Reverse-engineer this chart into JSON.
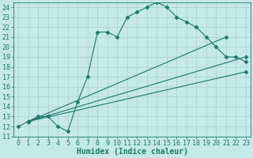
{
  "xlabel": "Humidex (Indice chaleur)",
  "bg_color": "#c5e8e8",
  "line_color": "#1a7a6a",
  "grid_color": "#aad0d0",
  "xlim": [
    -0.5,
    23.5
  ],
  "ylim": [
    11,
    24.5
  ],
  "yticks": [
    11,
    12,
    13,
    14,
    15,
    16,
    17,
    18,
    19,
    20,
    21,
    22,
    23,
    24
  ],
  "xticks": [
    0,
    1,
    2,
    3,
    4,
    5,
    6,
    7,
    8,
    9,
    10,
    11,
    12,
    13,
    14,
    15,
    16,
    17,
    18,
    19,
    20,
    21,
    22,
    23
  ],
  "curve1_x": [
    0,
    1,
    2,
    3,
    4,
    5,
    6,
    7,
    8,
    9,
    10,
    11,
    12,
    13,
    14,
    15,
    16,
    17,
    18,
    19,
    20,
    21,
    22,
    23
  ],
  "curve1_y": [
    12,
    12.5,
    13,
    13,
    12,
    11.5,
    14.5,
    17,
    21.5,
    21.5,
    21,
    23,
    23.5,
    24,
    24.5,
    24,
    23,
    22.5,
    22,
    21,
    20,
    19,
    19,
    18.5
  ],
  "line2_x": [
    1,
    21
  ],
  "line2_y": [
    12.5,
    21
  ],
  "line3_x": [
    1,
    23
  ],
  "line3_y": [
    12.5,
    19
  ],
  "line4_x": [
    1,
    23
  ],
  "line4_y": [
    12.5,
    17.5
  ],
  "marker_style": "D",
  "marker_size": 2.5,
  "font_family": "monospace",
  "xlabel_fontsize": 7,
  "tick_fontsize": 6
}
